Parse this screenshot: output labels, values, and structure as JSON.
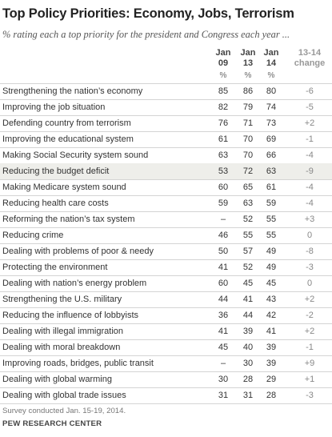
{
  "chart_data": {
    "type": "table",
    "title": "Top Policy Priorities: Economy, Jobs, Terrorism",
    "subtitle": "% rating each a top priority for the president and Congress each year ...",
    "columns": [
      {
        "line1": "Jan",
        "line2": "09"
      },
      {
        "line1": "Jan",
        "line2": "13"
      },
      {
        "line1": "Jan",
        "line2": "14"
      }
    ],
    "change_header": {
      "line1": "13-14",
      "line2": "change"
    },
    "unit_label": "%",
    "rows": [
      {
        "label": "Strengthening the nation’s economy",
        "v09": "85",
        "v13": "86",
        "v14": "80",
        "change": "-6",
        "highlight": false
      },
      {
        "label": "Improving the job situation",
        "v09": "82",
        "v13": "79",
        "v14": "74",
        "change": "-5",
        "highlight": false
      },
      {
        "label": "Defending country from terrorism",
        "v09": "76",
        "v13": "71",
        "v14": "73",
        "change": "+2",
        "highlight": false
      },
      {
        "label": "Improving the educational system",
        "v09": "61",
        "v13": "70",
        "v14": "69",
        "change": "-1",
        "highlight": false
      },
      {
        "label": "Making Social Security system sound",
        "v09": "63",
        "v13": "70",
        "v14": "66",
        "change": "-4",
        "highlight": false
      },
      {
        "label": "Reducing the budget deficit",
        "v09": "53",
        "v13": "72",
        "v14": "63",
        "change": "-9",
        "highlight": true
      },
      {
        "label": "Making Medicare system sound",
        "v09": "60",
        "v13": "65",
        "v14": "61",
        "change": "-4",
        "highlight": false
      },
      {
        "label": "Reducing health care costs",
        "v09": "59",
        "v13": "63",
        "v14": "59",
        "change": "-4",
        "highlight": false
      },
      {
        "label": "Reforming the nation’s tax system",
        "v09": "–",
        "v13": "52",
        "v14": "55",
        "change": "+3",
        "highlight": false
      },
      {
        "label": "Reducing crime",
        "v09": "46",
        "v13": "55",
        "v14": "55",
        "change": "0",
        "highlight": false
      },
      {
        "label": "Dealing with problems of poor & needy",
        "v09": "50",
        "v13": "57",
        "v14": "49",
        "change": "-8",
        "highlight": false
      },
      {
        "label": "Protecting the environment",
        "v09": "41",
        "v13": "52",
        "v14": "49",
        "change": "-3",
        "highlight": false
      },
      {
        "label": "Dealing with nation’s energy problem",
        "v09": "60",
        "v13": "45",
        "v14": "45",
        "change": "0",
        "highlight": false
      },
      {
        "label": "Strengthening the U.S. military",
        "v09": "44",
        "v13": "41",
        "v14": "43",
        "change": "+2",
        "highlight": false
      },
      {
        "label": "Reducing the influence of lobbyists",
        "v09": "36",
        "v13": "44",
        "v14": "42",
        "change": "-2",
        "highlight": false
      },
      {
        "label": "Dealing with illegal immigration",
        "v09": "41",
        "v13": "39",
        "v14": "41",
        "change": "+2",
        "highlight": false
      },
      {
        "label": "Dealing with moral breakdown",
        "v09": "45",
        "v13": "40",
        "v14": "39",
        "change": "-1",
        "highlight": false
      },
      {
        "label": "Improving roads, bridges, public transit",
        "v09": "–",
        "v13": "30",
        "v14": "39",
        "change": "+9",
        "highlight": false
      },
      {
        "label": "Dealing with global warming",
        "v09": "30",
        "v13": "28",
        "v14": "29",
        "change": "+1",
        "highlight": false
      },
      {
        "label": "Dealing with global trade issues",
        "v09": "31",
        "v13": "31",
        "v14": "28",
        "change": "-3",
        "highlight": false
      }
    ],
    "note": "Survey conducted Jan. 15-19, 2014.",
    "source": "PEW RESEARCH CENTER"
  }
}
